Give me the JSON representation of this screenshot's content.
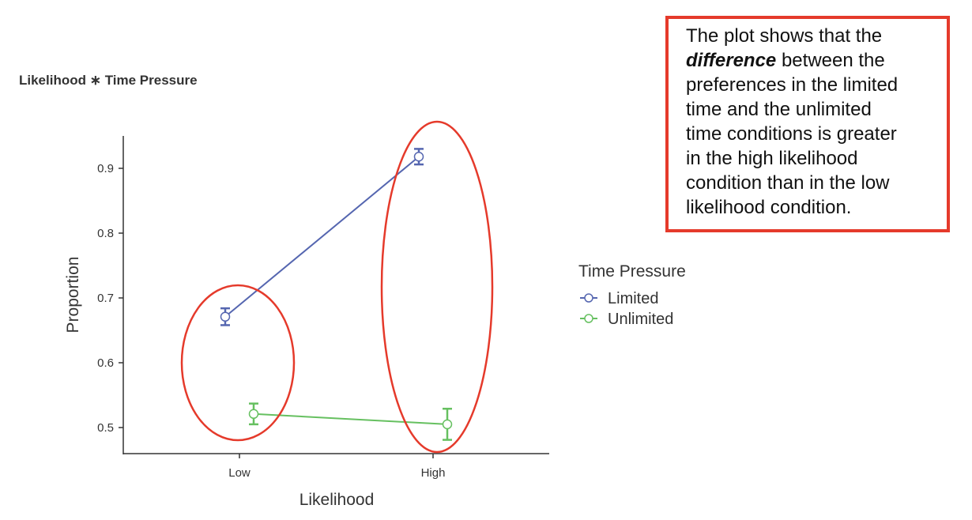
{
  "chart_data": {
    "type": "line",
    "title": "Likelihood ∗ Time Pressure",
    "xlabel": "Likelihood",
    "ylabel": "Proportion",
    "categories": [
      "Low",
      "High"
    ],
    "yticks": [
      0.5,
      0.6,
      0.7,
      0.8,
      0.9
    ],
    "ytick_labels": [
      "0.5",
      "0.6",
      "0.7",
      "0.8",
      "0.9"
    ],
    "ylim": [
      0.462,
      0.97
    ],
    "grid": false,
    "legend": {
      "title": "Time Pressure",
      "placement": "right"
    },
    "series": [
      {
        "name": "Limited",
        "color": "#5566b0",
        "values": [
          0.671,
          0.918
        ],
        "errors": [
          0.013,
          0.012
        ]
      },
      {
        "name": "Unlimited",
        "color": "#66c060",
        "values": [
          0.521,
          0.505
        ],
        "errors": [
          0.016,
          0.024
        ]
      }
    ],
    "annotations": {
      "ellipse_color": "#e53a2b",
      "note_lines": [
        "The plot shows that the",
        "difference|| between the",
        "preferences in the limited",
        "time and the unlimited",
        "time conditions is greater",
        "in the high likelihood",
        "condition than in the low",
        "likelihood condition."
      ],
      "note_emphasis": "difference",
      "note_line2_rest": " between the"
    }
  }
}
